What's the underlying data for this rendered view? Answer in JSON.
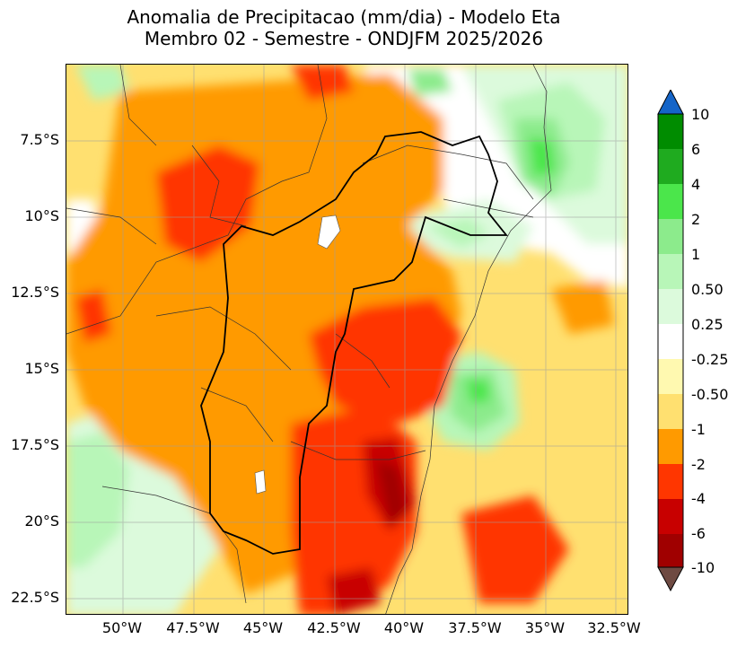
{
  "title": {
    "line1": "Anomalia de Precipitacao (mm/dia) - Modelo Eta",
    "line2": "Membro 02 - Semestre - ONDJFM 2025/2026"
  },
  "axes": {
    "y_ticks": [
      "7.5°S",
      "10°S",
      "12.5°S",
      "15°S",
      "17.5°S",
      "20°S",
      "22.5°S"
    ],
    "x_ticks": [
      "50°W",
      "47.5°W",
      "45°W",
      "42.5°W",
      "40°W",
      "37.5°W",
      "35°W",
      "32.5°W"
    ]
  },
  "colorbar": {
    "labels": [
      "10",
      "6",
      "4",
      "2",
      "1",
      "0.50",
      "0.25",
      "-0.25",
      "-0.50",
      "-1",
      "-2",
      "-4",
      "-6",
      "-10"
    ],
    "colors": {
      "above_10": "#1565c8",
      "6_10": "#008c00",
      "4_6": "#1fab1f",
      "2_4": "#4be64b",
      "1_2": "#8ceb8c",
      "0.5_1": "#b8f6b8",
      "0.25_0.5": "#dcfadc",
      "neutral": "#ffffff",
      "m0.25_m0.5": "#fff9b0",
      "m0.5_m1": "#ffe070",
      "m1_m2": "#ff9a00",
      "m2_m4": "#ff3600",
      "m4_m6": "#c80000",
      "m6_m10": "#a00000",
      "below_m10": "#6e4a42"
    }
  }
}
